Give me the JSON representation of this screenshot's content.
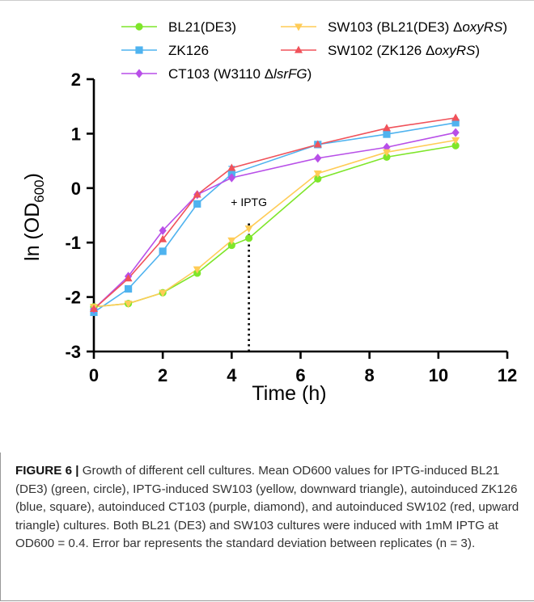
{
  "chart_data": {
    "type": "line",
    "xlabel": "Time (h)",
    "ylabel_main": "ln (OD",
    "ylabel_sub": "600",
    "ylabel_close": ")",
    "xlim": [
      0,
      12
    ],
    "ylim": [
      -3,
      2
    ],
    "xticks": [
      0,
      2,
      4,
      6,
      8,
      10,
      12
    ],
    "yticks": [
      -3,
      -2,
      -1,
      0,
      1,
      2
    ],
    "grid": false,
    "legend_placement": "top",
    "annotation": {
      "text": "+ IPTG",
      "x": 4.5
    },
    "series": [
      {
        "name": "BL21(DE3)",
        "color": "#7ee62a",
        "marker": "circle",
        "x": [
          0,
          1,
          2,
          3,
          4,
          4.5,
          6.5,
          8.5,
          10.5
        ],
        "y": [
          -2.18,
          -2.12,
          -1.92,
          -1.56,
          -1.05,
          -0.92,
          0.17,
          0.57,
          0.78
        ]
      },
      {
        "name": "ZK126",
        "color": "#4fb3ef",
        "marker": "square",
        "x": [
          0,
          1,
          2,
          3,
          4,
          6.5,
          8.5,
          10.5
        ],
        "y": [
          -2.28,
          -1.85,
          -1.16,
          -0.29,
          0.26,
          0.8,
          0.99,
          1.2
        ]
      },
      {
        "name": "CT103 (W3110 ΔlsrFG)",
        "color": "#b84fe8",
        "marker": "diamond",
        "x": [
          0,
          1,
          2,
          3,
          4,
          6.5,
          8.5,
          10.5
        ],
        "y": [
          -2.22,
          -1.62,
          -0.78,
          -0.12,
          0.19,
          0.55,
          0.75,
          1.02
        ]
      },
      {
        "name": "SW103 (BL21(DE3) ΔoxyRS)",
        "color": "#ffcc57",
        "marker": "triangle-down",
        "x": [
          0,
          1,
          2,
          3,
          4,
          4.5,
          6.5,
          8.5,
          10.5
        ],
        "y": [
          -2.18,
          -2.12,
          -1.92,
          -1.49,
          -0.96,
          -0.74,
          0.27,
          0.66,
          0.88
        ]
      },
      {
        "name": "SW102 (ZK126 ΔoxyRS)",
        "color": "#f0525a",
        "marker": "triangle-up",
        "x": [
          0,
          1,
          2,
          3,
          4,
          6.5,
          8.5,
          10.5
        ],
        "y": [
          -2.22,
          -1.66,
          -0.94,
          -0.12,
          0.37,
          0.8,
          1.1,
          1.29
        ]
      }
    ],
    "legend": [
      {
        "prefix": "BL21(DE3)",
        "italic": "",
        "suffix": ""
      },
      {
        "prefix": "ZK126",
        "italic": "",
        "suffix": ""
      },
      {
        "prefix": "CT103 (W3110 Δ",
        "italic": "lsrFG",
        "suffix": ")"
      },
      {
        "prefix": "SW103 (BL21(DE3) Δ",
        "italic": "oxyRS",
        "suffix": ")"
      },
      {
        "prefix": "SW102 (ZK126 Δ",
        "italic": "oxyRS",
        "suffix": ")"
      }
    ]
  },
  "caption": {
    "label": "FIGURE 6 |",
    "text": " Growth of different cell cultures. Mean OD600 values for IPTG-induced BL21 (DE3) (green, circle), IPTG-induced SW103 (yellow, downward triangle), autoinduced ZK126 (blue, square), autoinduced CT103 (purple, diamond), and autoinduced SW102 (red, upward triangle) cultures. Both BL21 (DE3) and SW103 cultures were induced with 1mM IPTG at OD600 = 0.4. Error bar represents the standard deviation between replicates (n = 3)."
  }
}
